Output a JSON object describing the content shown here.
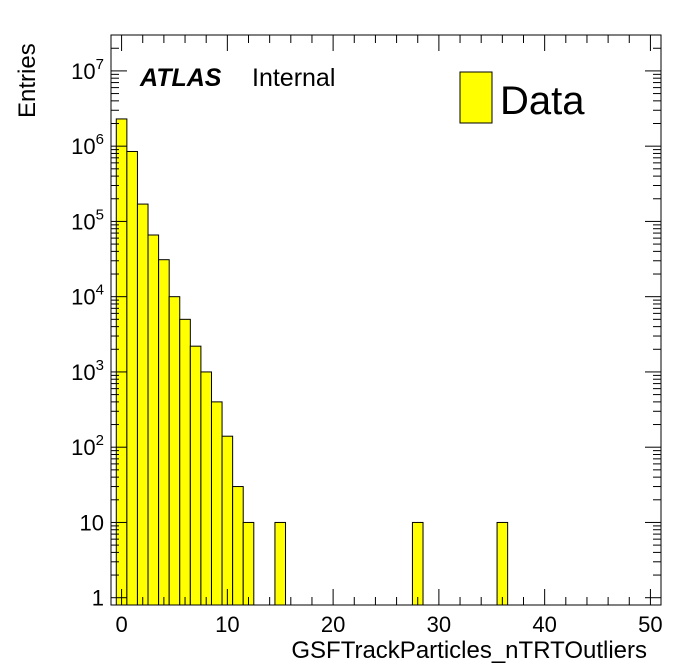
{
  "chart_data": {
    "type": "bar",
    "histogram": true,
    "xlabel": "GSFTrackParticles_nTRTOutliers",
    "ylabel": "Entries",
    "xlim": [
      -1,
      51
    ],
    "ylim": [
      0.8,
      30000000
    ],
    "y_scale": "log",
    "x_ticks": [
      0,
      10,
      20,
      30,
      40,
      50
    ],
    "y_ticks": [
      {
        "value": 1,
        "base": "1",
        "exp": ""
      },
      {
        "value": 10,
        "base": "10",
        "exp": ""
      },
      {
        "value": 100,
        "base": "10",
        "exp": "2"
      },
      {
        "value": 1000,
        "base": "10",
        "exp": "3"
      },
      {
        "value": 10000,
        "base": "10",
        "exp": "4"
      },
      {
        "value": 100000,
        "base": "10",
        "exp": "5"
      },
      {
        "value": 1000000,
        "base": "10",
        "exp": "6"
      },
      {
        "value": 10000000,
        "base": "10",
        "exp": "7"
      }
    ],
    "bin_width": 1,
    "bins": [
      {
        "x": -0.5,
        "value": 2300000
      },
      {
        "x": 0.5,
        "value": 850000
      },
      {
        "x": 1.5,
        "value": 170000
      },
      {
        "x": 2.5,
        "value": 66000
      },
      {
        "x": 3.5,
        "value": 31000
      },
      {
        "x": 4.5,
        "value": 10000
      },
      {
        "x": 5.5,
        "value": 5000
      },
      {
        "x": 6.5,
        "value": 2200
      },
      {
        "x": 7.5,
        "value": 1000
      },
      {
        "x": 8.5,
        "value": 400
      },
      {
        "x": 9.5,
        "value": 140
      },
      {
        "x": 10.5,
        "value": 30
      },
      {
        "x": 11.5,
        "value": 10
      },
      {
        "x": 14.5,
        "value": 10
      },
      {
        "x": 27.5,
        "value": 10
      },
      {
        "x": 35.5,
        "value": 10
      }
    ],
    "series": [
      {
        "name": "Data",
        "color": "#ffff00"
      }
    ],
    "legend_position": "top-right",
    "annotation": {
      "bold": "ATLAS",
      "normal": "Internal"
    }
  }
}
